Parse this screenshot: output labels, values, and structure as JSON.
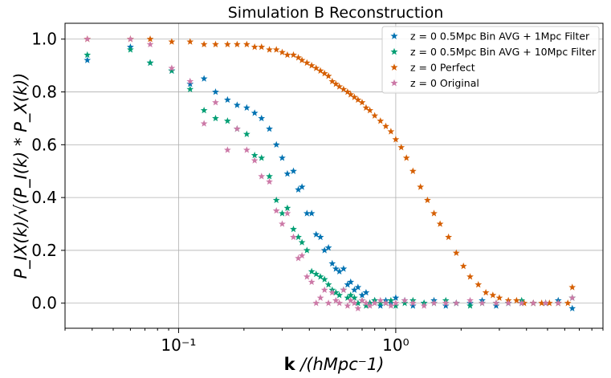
{
  "chart_data": {
    "type": "scatter",
    "title": "Simulation B Reconstruction",
    "xlabel": "k /(hMpc⁻1)",
    "xlabel_bold": "k",
    "xlabel_rest": " /(hMpc⁻1)",
    "ylabel": "P_IX(k)/√(P_I(k) * P_X(k))",
    "xscale": "log",
    "xlim": [
      0.03,
      9
    ],
    "ylim": [
      -0.095,
      1.06
    ],
    "grid": true,
    "legend_position": "top-right",
    "marker": "star",
    "x_ticks": [
      {
        "value": 0.1,
        "label": "10⁻¹"
      },
      {
        "value": 1,
        "label": "10⁰"
      }
    ],
    "y_ticks": [
      {
        "value": 0.0,
        "label": "0.0"
      },
      {
        "value": 0.2,
        "label": "0.2"
      },
      {
        "value": 0.4,
        "label": "0.4"
      },
      {
        "value": 0.6,
        "label": "0.6"
      },
      {
        "value": 0.8,
        "label": "0.8"
      },
      {
        "value": 1.0,
        "label": "1.0"
      }
    ],
    "series": [
      {
        "name": "z = 0  0.5Mpc Bin AVG + 1Mpc Filter",
        "color": "#0072b2",
        "x": [
          0.038,
          0.06,
          0.074,
          0.093,
          0.113,
          0.131,
          0.148,
          0.168,
          0.186,
          0.206,
          0.224,
          0.241,
          0.262,
          0.282,
          0.3,
          0.317,
          0.338,
          0.356,
          0.37,
          0.39,
          0.41,
          0.43,
          0.45,
          0.47,
          0.49,
          0.51,
          0.53,
          0.55,
          0.575,
          0.6,
          0.62,
          0.645,
          0.67,
          0.7,
          0.73,
          0.76,
          0.8,
          0.85,
          0.9,
          0.95,
          1.0,
          1.1,
          1.2,
          1.35,
          1.5,
          1.7,
          1.9,
          2.2,
          2.5,
          2.9,
          3.3,
          3.8,
          4.3,
          4.9,
          5.6,
          6.5
        ],
        "y": [
          0.92,
          0.97,
          0.91,
          0.88,
          0.83,
          0.85,
          0.8,
          0.77,
          0.75,
          0.74,
          0.72,
          0.7,
          0.66,
          0.6,
          0.55,
          0.49,
          0.5,
          0.43,
          0.44,
          0.34,
          0.34,
          0.26,
          0.25,
          0.2,
          0.21,
          0.15,
          0.13,
          0.12,
          0.13,
          0.07,
          0.08,
          0.05,
          0.06,
          0.03,
          0.04,
          0.0,
          0.01,
          -0.01,
          0.01,
          0.0,
          0.02,
          0.01,
          -0.01,
          0.0,
          0.01,
          -0.01,
          0.0,
          0.0,
          0.01,
          -0.01,
          0.0,
          0.0,
          0.0,
          0.0,
          0.01,
          -0.02
        ]
      },
      {
        "name": "z = 0  0.5Mpc Bin AVG + 10Mpc Filter",
        "color": "#009e73",
        "x": [
          0.038,
          0.06,
          0.074,
          0.093,
          0.113,
          0.131,
          0.148,
          0.168,
          0.186,
          0.206,
          0.224,
          0.241,
          0.262,
          0.282,
          0.3,
          0.317,
          0.338,
          0.356,
          0.37,
          0.39,
          0.41,
          0.43,
          0.45,
          0.47,
          0.49,
          0.51,
          0.53,
          0.55,
          0.575,
          0.6,
          0.62,
          0.645,
          0.67,
          0.7,
          0.73,
          0.76,
          0.8,
          0.85,
          0.9,
          0.95,
          1.0,
          1.1,
          1.2,
          1.35,
          1.5,
          1.7,
          1.9,
          2.2,
          2.5,
          2.9,
          3.3,
          3.8,
          4.3,
          4.9,
          5.6,
          6.5
        ],
        "y": [
          0.94,
          0.96,
          0.91,
          0.88,
          0.81,
          0.73,
          0.7,
          0.69,
          0.66,
          0.64,
          0.56,
          0.55,
          0.48,
          0.39,
          0.34,
          0.36,
          0.28,
          0.25,
          0.23,
          0.2,
          0.12,
          0.11,
          0.1,
          0.09,
          0.07,
          0.05,
          0.04,
          0.03,
          0.05,
          0.02,
          0.03,
          0.02,
          0.0,
          0.01,
          -0.01,
          0.0,
          0.01,
          0.0,
          0.0,
          0.01,
          -0.01,
          0.0,
          0.01,
          0.0,
          0.0,
          0.01,
          0.0,
          -0.01,
          0.0,
          0.0,
          0.0,
          0.01,
          0.0,
          0.0,
          0.0,
          0.02
        ]
      },
      {
        "name": "z = 0  Perfect",
        "color": "#d55e00",
        "x": [
          0.038,
          0.06,
          0.074,
          0.093,
          0.113,
          0.131,
          0.148,
          0.168,
          0.186,
          0.206,
          0.224,
          0.241,
          0.262,
          0.282,
          0.3,
          0.317,
          0.338,
          0.356,
          0.37,
          0.39,
          0.41,
          0.43,
          0.45,
          0.47,
          0.49,
          0.51,
          0.53,
          0.55,
          0.575,
          0.6,
          0.62,
          0.645,
          0.67,
          0.7,
          0.73,
          0.76,
          0.8,
          0.85,
          0.9,
          0.95,
          1.0,
          1.06,
          1.12,
          1.2,
          1.3,
          1.4,
          1.5,
          1.6,
          1.75,
          1.9,
          2.05,
          2.2,
          2.4,
          2.6,
          2.8,
          3.0,
          3.3,
          3.6,
          3.9,
          4.3,
          4.7,
          5.1,
          5.6,
          6.2,
          6.5
        ],
        "y": [
          1.0,
          1.0,
          1.0,
          0.99,
          0.99,
          0.98,
          0.98,
          0.98,
          0.98,
          0.98,
          0.97,
          0.97,
          0.96,
          0.96,
          0.95,
          0.94,
          0.94,
          0.93,
          0.92,
          0.91,
          0.9,
          0.89,
          0.88,
          0.87,
          0.86,
          0.84,
          0.83,
          0.82,
          0.81,
          0.8,
          0.79,
          0.78,
          0.77,
          0.76,
          0.74,
          0.73,
          0.71,
          0.69,
          0.67,
          0.65,
          0.62,
          0.59,
          0.55,
          0.5,
          0.44,
          0.39,
          0.34,
          0.3,
          0.25,
          0.19,
          0.14,
          0.1,
          0.07,
          0.04,
          0.03,
          0.02,
          0.01,
          0.01,
          0.0,
          0.0,
          0.0,
          0.0,
          0.0,
          0.0,
          0.06
        ]
      },
      {
        "name": "z = 0  Original",
        "color": "#cc79a7",
        "x": [
          0.038,
          0.06,
          0.074,
          0.093,
          0.113,
          0.131,
          0.148,
          0.168,
          0.186,
          0.206,
          0.224,
          0.241,
          0.262,
          0.282,
          0.3,
          0.317,
          0.338,
          0.356,
          0.37,
          0.39,
          0.41,
          0.43,
          0.45,
          0.47,
          0.49,
          0.51,
          0.53,
          0.55,
          0.575,
          0.6,
          0.62,
          0.645,
          0.67,
          0.7,
          0.73,
          0.76,
          0.8,
          0.85,
          0.9,
          0.95,
          1.0,
          1.1,
          1.2,
          1.35,
          1.5,
          1.7,
          1.9,
          2.2,
          2.5,
          2.9,
          3.3,
          3.8,
          4.3,
          4.9,
          5.6,
          6.5
        ],
        "y": [
          1.0,
          1.0,
          0.98,
          0.89,
          0.84,
          0.68,
          0.76,
          0.58,
          0.66,
          0.58,
          0.54,
          0.48,
          0.46,
          0.35,
          0.3,
          0.34,
          0.25,
          0.17,
          0.18,
          0.1,
          0.08,
          0.0,
          0.02,
          0.05,
          0.0,
          0.04,
          0.01,
          0.0,
          0.05,
          -0.01,
          0.01,
          0.0,
          -0.02,
          0.01,
          0.0,
          -0.01,
          0.0,
          0.01,
          0.0,
          -0.01,
          0.0,
          0.01,
          0.0,
          -0.01,
          0.0,
          0.0,
          0.0,
          0.01,
          0.0,
          0.0,
          0.0,
          0.0,
          0.0,
          0.0,
          0.0,
          0.02
        ]
      }
    ]
  }
}
